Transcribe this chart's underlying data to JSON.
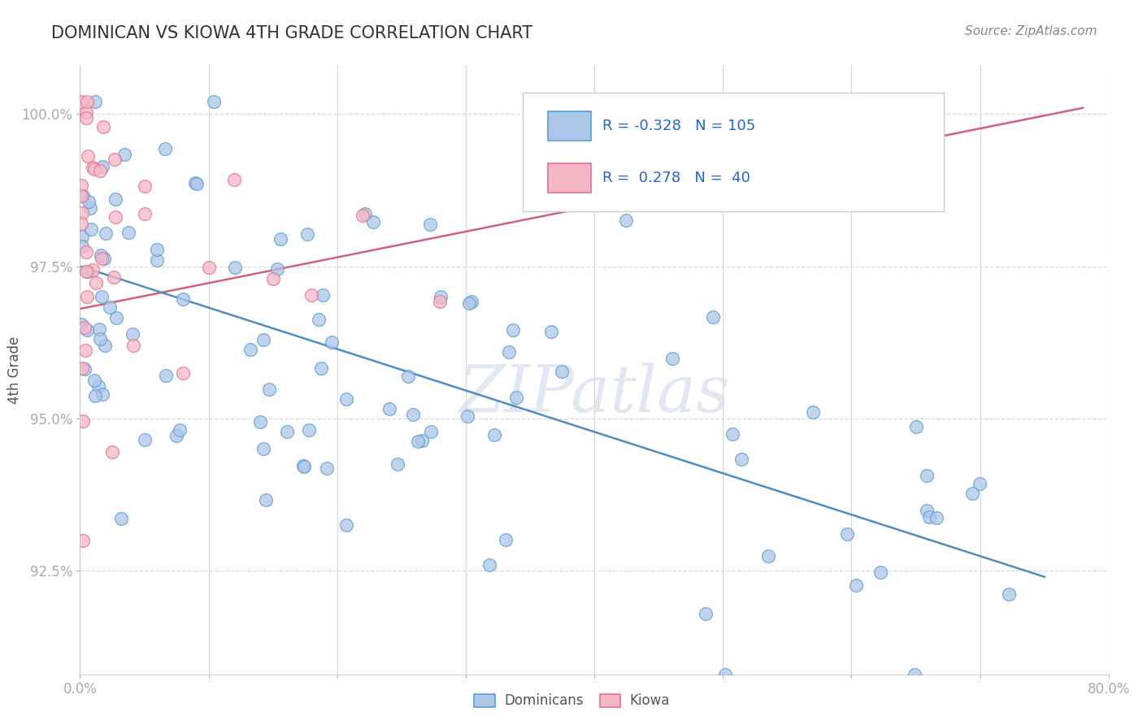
{
  "title": "DOMINICAN VS KIOWA 4TH GRADE CORRELATION CHART",
  "source": "Source: ZipAtlas.com",
  "ylabel": "4th Grade",
  "ytick_labels": [
    "92.5%",
    "95.0%",
    "97.5%",
    "100.0%"
  ],
  "ytick_values": [
    0.925,
    0.95,
    0.975,
    1.0
  ],
  "xmin": 0.0,
  "xmax": 0.8,
  "ymin": 0.908,
  "ymax": 1.008,
  "dominican_color": "#aec6e8",
  "kiowa_color": "#f5b8c8",
  "dominican_edge_color": "#5a9fd4",
  "kiowa_edge_color": "#e8708a",
  "dominican_line_color": "#4a8ec2",
  "kiowa_line_color": "#d4607a",
  "legend_R1": "-0.328",
  "legend_N1": "105",
  "legend_R2": "0.278",
  "legend_N2": "40",
  "watermark": "ZIPatlas",
  "bg_color": "#ffffff",
  "grid_color": "#d8d8d8",
  "title_color": "#333333",
  "source_color": "#888888",
  "ytick_color": "#5a9fd4",
  "xtick_color": "#666666",
  "ylabel_color": "#555555"
}
